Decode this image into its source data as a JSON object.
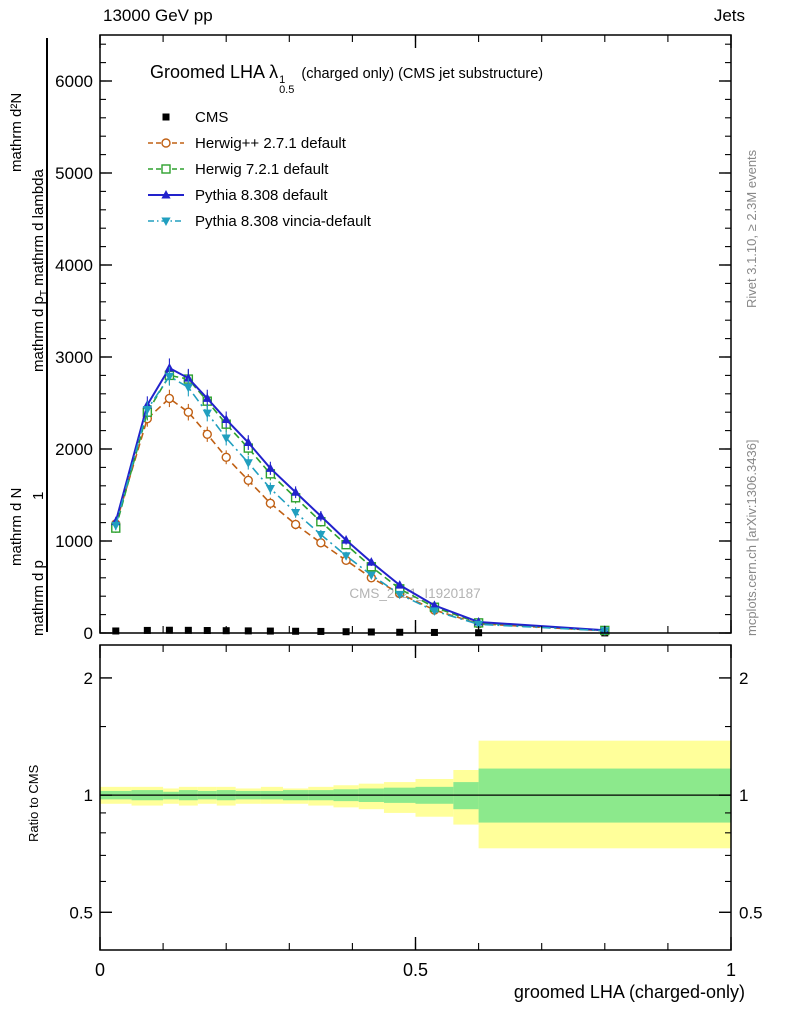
{
  "header": {
    "left_label": "13000 GeV pp",
    "right_label": "Jets"
  },
  "side_notes": {
    "right_top": "Rivet 3.1.10, ≥ 2.3M events",
    "right_bottom": "mcplots.cern.ch [arXiv:1306.3436]"
  },
  "main_panel": {
    "title": {
      "prefix": "Groomed LHA",
      "symbol": "λ",
      "sup": "1",
      "sub": "0.5",
      "suffix": "(charged only) (CMS jet substructure)"
    },
    "watermark": "CMS_2021_I1920187",
    "y_axis_label_parts": {
      "numerator": "mathrm d²N",
      "denominator_1": "mathrm d p",
      "denominator_sub": "T",
      "denominator_2": " mathrm d lambda",
      "norm_numerator": "1",
      "norm_denominator": "mathrm d N",
      "norm_extra": "mathrm d p"
    }
  },
  "ratio_panel": {
    "y_axis_label": "Ratio to CMS"
  },
  "x_axis": {
    "label": "groomed LHA (charged-only)"
  },
  "chart_data": {
    "type": "line",
    "title": "Groomed LHA λ^1_0.5 (charged only) (CMS jet substructure)",
    "xlabel": "groomed LHA (charged-only)",
    "ylabel": "1/N d²N / (d p_T d lambda)",
    "xlim": [
      0,
      1
    ],
    "ylim": [
      0,
      6500
    ],
    "x_major_ticks": [
      0,
      0.5,
      1
    ],
    "x_tick_labels": [
      "0",
      "0.5",
      "1"
    ],
    "x_minor_step": 0.1,
    "y_major_ticks": [
      0,
      1000,
      2000,
      3000,
      4000,
      5000,
      6000
    ],
    "y_tick_labels": [
      "0",
      "1000",
      "2000",
      "3000",
      "4000",
      "5000",
      "6000"
    ],
    "y_minor_step": 200,
    "legend_position": "top-left",
    "grid": false,
    "x": [
      0.025,
      0.075,
      0.11,
      0.14,
      0.17,
      0.2,
      0.235,
      0.27,
      0.31,
      0.35,
      0.39,
      0.43,
      0.475,
      0.53,
      0.6,
      0.8
    ],
    "series": [
      {
        "name": "CMS",
        "color": "#000000",
        "line": "none",
        "marker": "filled-square",
        "values": [
          22,
          28,
          30,
          29,
          27,
          25,
          23,
          21,
          19,
          17,
          14,
          11,
          8,
          6,
          3,
          1
        ]
      },
      {
        "name": "Herwig++ 2.7.1 default",
        "color": "#c06014",
        "line": "dashed",
        "marker": "open-circle",
        "values": [
          1185,
          2330,
          2550,
          2400,
          2160,
          1910,
          1660,
          1410,
          1180,
          980,
          790,
          600,
          430,
          250,
          100,
          24
        ]
      },
      {
        "name": "Herwig 7.2.1 default",
        "color": "#2ea12e",
        "line": "dashed",
        "marker": "open-square",
        "values": [
          1140,
          2400,
          2800,
          2760,
          2520,
          2270,
          2010,
          1730,
          1470,
          1210,
          960,
          720,
          480,
          280,
          110,
          28
        ]
      },
      {
        "name": "Pythia 8.308 default",
        "color": "#2222cc",
        "line": "solid",
        "marker": "filled-triangle-up",
        "values": [
          1210,
          2480,
          2880,
          2770,
          2550,
          2320,
          2070,
          1790,
          1530,
          1270,
          1010,
          770,
          520,
          300,
          120,
          30
        ]
      },
      {
        "name": "Pythia 8.308 vincia-default",
        "color": "#219fbf",
        "line": "dash-dot",
        "marker": "filled-triangle-down",
        "values": [
          1170,
          2430,
          2790,
          2670,
          2390,
          2120,
          1850,
          1570,
          1310,
          1070,
          840,
          630,
          420,
          240,
          95,
          24
        ]
      }
    ],
    "ratio": {
      "ylabel": "Ratio to CMS",
      "scale": "log",
      "ylim": [
        0.4,
        2.43
      ],
      "y_major_ticks": [
        0.5,
        1,
        2
      ],
      "y_tick_labels": [
        "0.5",
        "1",
        "2"
      ],
      "y_minor_ticks": [
        0.6,
        0.7,
        0.8,
        0.9,
        1.5
      ],
      "reference_line": 1,
      "band_colors": {
        "outer": "#ffff9a",
        "inner": "#8ce98c"
      },
      "bins": [
        {
          "x0": 0.0,
          "x1": 0.05,
          "outer": [
            0.95,
            1.05
          ],
          "inner": [
            0.975,
            1.025
          ]
        },
        {
          "x0": 0.05,
          "x1": 0.1,
          "outer": [
            0.94,
            1.05
          ],
          "inner": [
            0.97,
            1.03
          ]
        },
        {
          "x0": 0.1,
          "x1": 0.125,
          "outer": [
            0.95,
            1.04
          ],
          "inner": [
            0.975,
            1.02
          ]
        },
        {
          "x0": 0.125,
          "x1": 0.155,
          "outer": [
            0.94,
            1.05
          ],
          "inner": [
            0.97,
            1.03
          ]
        },
        {
          "x0": 0.155,
          "x1": 0.185,
          "outer": [
            0.95,
            1.05
          ],
          "inner": [
            0.975,
            1.025
          ]
        },
        {
          "x0": 0.185,
          "x1": 0.215,
          "outer": [
            0.94,
            1.05
          ],
          "inner": [
            0.97,
            1.03
          ]
        },
        {
          "x0": 0.215,
          "x1": 0.255,
          "outer": [
            0.95,
            1.04
          ],
          "inner": [
            0.975,
            1.025
          ]
        },
        {
          "x0": 0.255,
          "x1": 0.29,
          "outer": [
            0.95,
            1.05
          ],
          "inner": [
            0.975,
            1.025
          ]
        },
        {
          "x0": 0.29,
          "x1": 0.33,
          "outer": [
            0.95,
            1.04
          ],
          "inner": [
            0.97,
            1.03
          ]
        },
        {
          "x0": 0.33,
          "x1": 0.37,
          "outer": [
            0.94,
            1.05
          ],
          "inner": [
            0.97,
            1.03
          ]
        },
        {
          "x0": 0.37,
          "x1": 0.41,
          "outer": [
            0.93,
            1.06
          ],
          "inner": [
            0.965,
            1.035
          ]
        },
        {
          "x0": 0.41,
          "x1": 0.45,
          "outer": [
            0.92,
            1.07
          ],
          "inner": [
            0.96,
            1.04
          ]
        },
        {
          "x0": 0.45,
          "x1": 0.5,
          "outer": [
            0.9,
            1.08
          ],
          "inner": [
            0.955,
            1.045
          ]
        },
        {
          "x0": 0.5,
          "x1": 0.56,
          "outer": [
            0.88,
            1.1
          ],
          "inner": [
            0.95,
            1.05
          ]
        },
        {
          "x0": 0.56,
          "x1": 0.6,
          "outer": [
            0.84,
            1.16
          ],
          "inner": [
            0.92,
            1.08
          ]
        },
        {
          "x0": 0.6,
          "x1": 1.0,
          "outer": [
            0.73,
            1.38
          ],
          "inner": [
            0.85,
            1.17
          ]
        }
      ]
    }
  }
}
